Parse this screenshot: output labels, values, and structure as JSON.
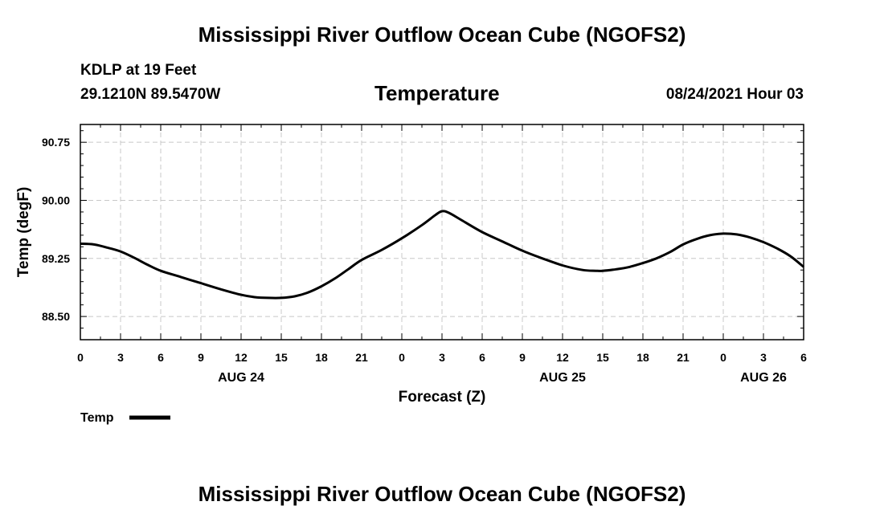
{
  "page": {
    "top_title": "Mississippi River Outflow Ocean Cube (NGOFS2)",
    "bottom_title": "Mississippi River Outflow Ocean Cube (NGOFS2)"
  },
  "header": {
    "station": "KDLP at 19 Feet",
    "coords": "29.1210N  89.5470W",
    "datetime": "08/24/2021 Hour 03"
  },
  "chart_data": {
    "type": "line",
    "title": "Temperature",
    "xlabel": "Forecast (Z)",
    "ylabel": "Temp (degF)",
    "xlim": [
      0,
      54
    ],
    "ylim": [
      88.2,
      90.98
    ],
    "grid": true,
    "x_ticks": [
      0,
      3,
      6,
      9,
      12,
      15,
      18,
      21,
      24,
      27,
      30,
      33,
      36,
      39,
      42,
      45,
      48,
      51,
      54
    ],
    "x_tick_labels": [
      "0",
      "3",
      "6",
      "9",
      "12",
      "15",
      "18",
      "21",
      "0",
      "3",
      "6",
      "9",
      "12",
      "15",
      "18",
      "21",
      "0",
      "3",
      "6"
    ],
    "date_labels": [
      {
        "x": 12,
        "label": "AUG 24"
      },
      {
        "x": 36,
        "label": "AUG 25"
      },
      {
        "x": 51,
        "label": "AUG 26"
      }
    ],
    "y_ticks": [
      88.5,
      89.25,
      90.0,
      90.75
    ],
    "y_tick_labels": [
      "88.50",
      "89.25",
      "90.00",
      "90.75"
    ],
    "legend": {
      "label": "Temp",
      "position": "bottom-left"
    },
    "series": [
      {
        "name": "Temp",
        "color": "#000000",
        "x": [
          0,
          1,
          2,
          3,
          4,
          5,
          6,
          7.5,
          9,
          10.5,
          12,
          13,
          14,
          15,
          16,
          17,
          18,
          19,
          20,
          21,
          22.5,
          24,
          25.5,
          26.5,
          27,
          27.5,
          28.5,
          30,
          31.5,
          33,
          34.5,
          36,
          37.5,
          38.5,
          39,
          40,
          41,
          42,
          43,
          44,
          45,
          46,
          47,
          48,
          49,
          50,
          51,
          52,
          53,
          54
        ],
        "values": [
          89.44,
          89.43,
          89.39,
          89.34,
          89.26,
          89.17,
          89.09,
          89.01,
          88.93,
          88.85,
          88.78,
          88.75,
          88.74,
          88.74,
          88.76,
          88.81,
          88.89,
          88.99,
          89.11,
          89.23,
          89.36,
          89.51,
          89.68,
          89.81,
          89.86,
          89.84,
          89.74,
          89.59,
          89.47,
          89.35,
          89.25,
          89.16,
          89.1,
          89.09,
          89.09,
          89.11,
          89.14,
          89.19,
          89.25,
          89.33,
          89.43,
          89.5,
          89.55,
          89.57,
          89.56,
          89.52,
          89.46,
          89.38,
          89.28,
          89.14
        ]
      }
    ]
  }
}
